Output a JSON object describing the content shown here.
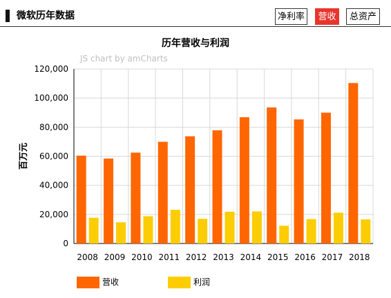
{
  "header": {
    "title": "微软历年数据"
  },
  "tabs": [
    {
      "label": "净利率",
      "active": false
    },
    {
      "label": "营收",
      "active": true
    },
    {
      "label": "总资产",
      "active": false
    }
  ],
  "watermark": "JS chart by amCharts",
  "colors": {
    "revenue": "#ff6600",
    "profit": "#fccd03",
    "active_tab": "#e8352e"
  },
  "chart_data": {
    "type": "bar",
    "title": "历年营收与利润",
    "xlabel": "",
    "ylabel": "百万元",
    "categories": [
      "2008",
      "2009",
      "2010",
      "2011",
      "2012",
      "2013",
      "2014",
      "2015",
      "2016",
      "2017",
      "2018"
    ],
    "series": [
      {
        "name": "营收",
        "color": "#ff6600",
        "values": [
          60420,
          58437,
          62484,
          69943,
          73723,
          77849,
          86833,
          93580,
          85320,
          89950,
          110360
        ]
      },
      {
        "name": "利润",
        "color": "#fccd03",
        "values": [
          17681,
          14569,
          18760,
          23150,
          16978,
          21863,
          22074,
          12193,
          16798,
          21204,
          16571
        ]
      }
    ],
    "yticks": [
      "0",
      "20,000",
      "40,000",
      "60,000",
      "80,000",
      "100,000",
      "120,000"
    ],
    "ylim": [
      0,
      120000
    ],
    "grid": true,
    "legend": "bottom-left"
  }
}
